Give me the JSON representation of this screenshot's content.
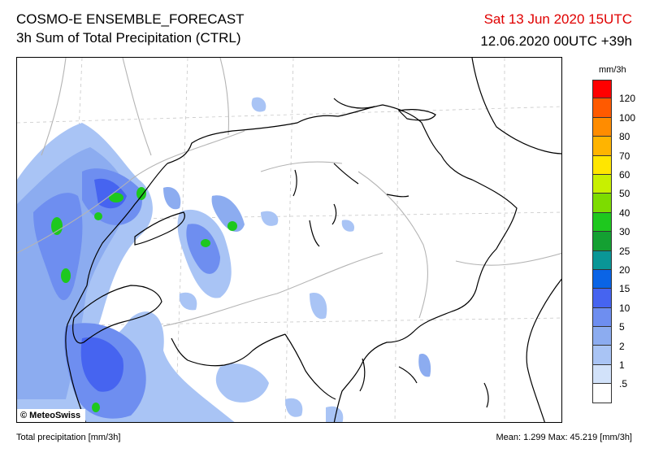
{
  "header": {
    "title_line1": "COSMO-E ENSEMBLE_FORECAST",
    "title_line2": "3h Sum of Total Precipitation (CTRL)",
    "valid_time": "Sat 13 Jun 2020 15UTC",
    "run_time": "12.06.2020 00UTC +39h"
  },
  "map": {
    "copyright": "© MeteoSwiss",
    "precip_color_light": "#a9c4f5",
    "precip_color_mid": "#6e8ef0",
    "precip_color_heavy": "#3c52e0",
    "precip_color_peak": "#1ec81e",
    "border_color": "#000000",
    "river_color": "#b4b4b4"
  },
  "colorbar": {
    "unit": "mm/3h",
    "levels": [
      {
        "label": "120",
        "color": "#ff0000"
      },
      {
        "label": "100",
        "color": "#ff5a00"
      },
      {
        "label": "80",
        "color": "#ff8c00"
      },
      {
        "label": "70",
        "color": "#ffb400"
      },
      {
        "label": "60",
        "color": "#ffe600"
      },
      {
        "label": "50",
        "color": "#c8f000"
      },
      {
        "label": "40",
        "color": "#7ddc00"
      },
      {
        "label": "30",
        "color": "#1ec81e"
      },
      {
        "label": "25",
        "color": "#14a032"
      },
      {
        "label": "20",
        "color": "#0a9696"
      },
      {
        "label": "15",
        "color": "#0a64e6"
      },
      {
        "label": "10",
        "color": "#4664f0"
      },
      {
        "label": "5",
        "color": "#6e8ef0"
      },
      {
        "label": "2",
        "color": "#8cacf0"
      },
      {
        "label": "1",
        "color": "#a9c4f5"
      },
      {
        "label": ".5",
        "color": "#d2e2fa"
      },
      {
        "label": "",
        "color": "#ffffff"
      }
    ]
  },
  "footer": {
    "left": "Total precipitation [mm/3h]",
    "right": "Mean:   1.299 Max:  45.219 [mm/3h]"
  }
}
